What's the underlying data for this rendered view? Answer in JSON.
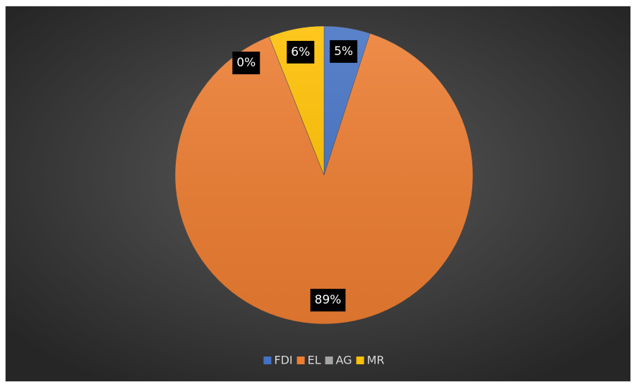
{
  "chart_data": {
    "type": "pie",
    "categories": [
      "FDI",
      "EL",
      "AG",
      "MR"
    ],
    "values": [
      5,
      89,
      0,
      6
    ],
    "value_labels": [
      "5%",
      "89%",
      "0%",
      "6%"
    ],
    "colors": [
      "#4472c4",
      "#ed7d31",
      "#a5a5a5",
      "#ffc000"
    ],
    "legend": "bottom"
  }
}
